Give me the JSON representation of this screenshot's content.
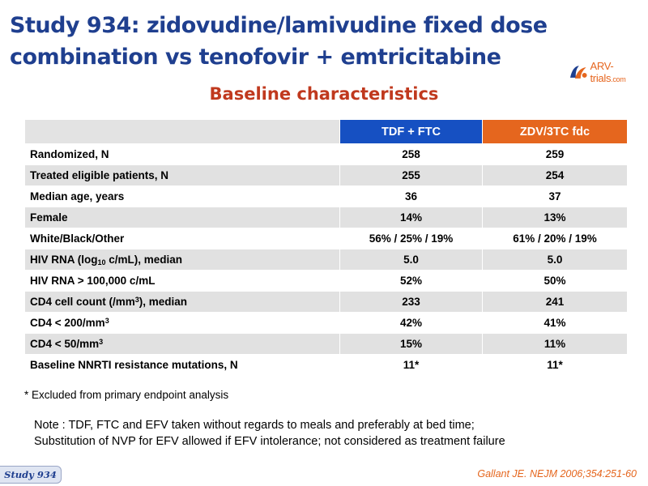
{
  "slide": {
    "title": "Study 934: zidovudine/lamivudine fixed dose combination vs tenofovir + emtricitabine",
    "subtitle": "Baseline characteristics"
  },
  "logo": {
    "text": "ARV-trials",
    "suffix": ".com",
    "colors": {
      "orange": "#e5661e",
      "blue": "#1f3f8f"
    }
  },
  "table": {
    "headers": [
      "",
      "TDF + FTC",
      "ZDV/3TC fdc"
    ],
    "header_colors": {
      "tdf": "#1650c2",
      "zdv": "#e5661e"
    },
    "rows": [
      {
        "label": "Randomized, N",
        "tdf": "258",
        "zdv": "259"
      },
      {
        "label": "Treated eligible patients, N",
        "tdf": "255",
        "zdv": "254"
      },
      {
        "label": "Median age, years",
        "tdf": "36",
        "zdv": "37"
      },
      {
        "label": "Female",
        "tdf": "14%",
        "zdv": "13%"
      },
      {
        "label": "White/Black/Other",
        "tdf": "56% / 25% / 19%",
        "zdv": "61% / 20% / 19%"
      },
      {
        "label_pre": "HIV RNA (log",
        "label_sub": "10",
        "label_post": " c/mL), median",
        "tdf": "5.0",
        "zdv": "5.0"
      },
      {
        "label": "HIV RNA > 100,000 c/mL",
        "tdf": "52%",
        "zdv": "50%"
      },
      {
        "label_pre": "CD4 cell count (/mm",
        "label_sup": "3",
        "label_post": "), median",
        "tdf": "233",
        "zdv": "241"
      },
      {
        "label_pre": "CD4 < 200/mm",
        "label_sup": "3",
        "tdf": "42%",
        "zdv": "41%"
      },
      {
        "label_pre": "CD4 < 50/mm",
        "label_sup": "3",
        "tdf": "15%",
        "zdv": "11%"
      },
      {
        "label": "Baseline NNRTI resistance mutations, N",
        "tdf": "11*",
        "zdv": "11*"
      }
    ]
  },
  "footnote": "* Excluded from primary endpoint analysis",
  "note": {
    "line1": "Note : TDF, FTC and EFV taken without regards to meals and preferably at bed time;",
    "line2": "Substitution of NVP for EFV allowed if EFV intolerance; not considered as treatment failure"
  },
  "badge": "Study 934",
  "citation": "Gallant JE. NEJM 2006;354:251-60"
}
